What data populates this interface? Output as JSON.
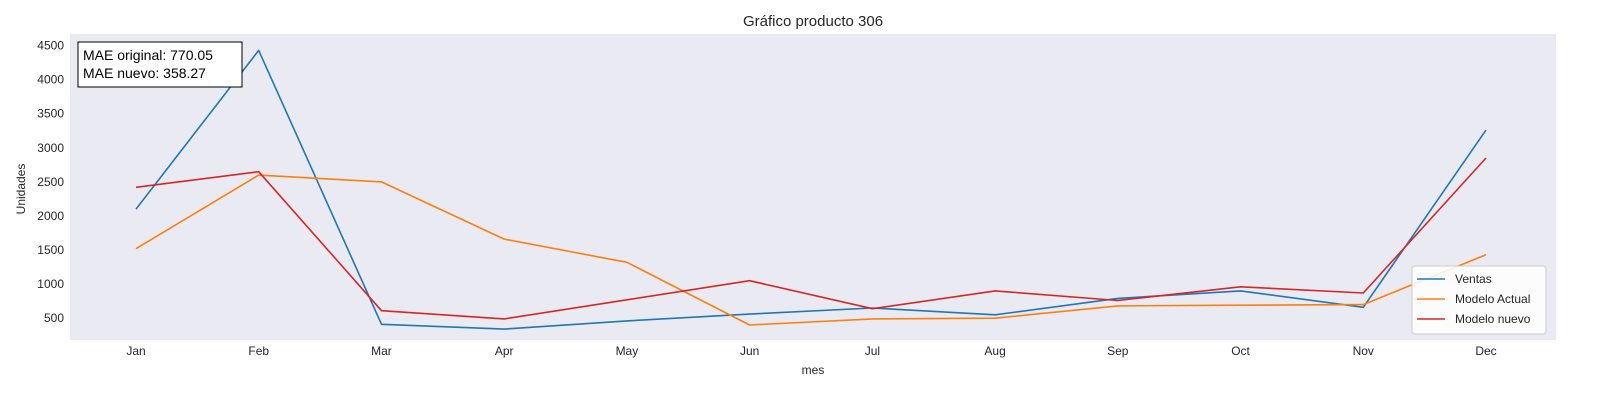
{
  "chart_data": {
    "type": "line",
    "title": "Gráfico producto 306",
    "xlabel": "mes",
    "ylabel": "Unidades",
    "categories": [
      "Jan",
      "Feb",
      "Mar",
      "Apr",
      "May",
      "Jun",
      "Jul",
      "Aug",
      "Sep",
      "Oct",
      "Nov",
      "Dec"
    ],
    "yticks": [
      500,
      1000,
      1500,
      2000,
      2500,
      3000,
      3500,
      4000,
      4500
    ],
    "ylim": [
      180,
      4670
    ],
    "grid": false,
    "legend_position": "lower-right",
    "background_color": "#eaeaf2",
    "series": [
      {
        "name": "Ventas",
        "color": "#1f77b4",
        "values": [
          2100,
          4430,
          410,
          340,
          460,
          560,
          650,
          550,
          790,
          900,
          660,
          3260
        ]
      },
      {
        "name": "Modelo Actual",
        "color": "#ff7f0e",
        "values": [
          1520,
          2600,
          2500,
          1660,
          1320,
          400,
          490,
          500,
          680,
          690,
          700,
          1430
        ]
      },
      {
        "name": "Modelo nuevo",
        "color": "#d62728",
        "values": [
          2420,
          2650,
          610,
          490,
          770,
          1050,
          640,
          900,
          760,
          960,
          870,
          2850
        ]
      }
    ],
    "annotation": {
      "lines": [
        "MAE original: 770.05",
        "MAE nuevo: 358.27"
      ]
    }
  }
}
